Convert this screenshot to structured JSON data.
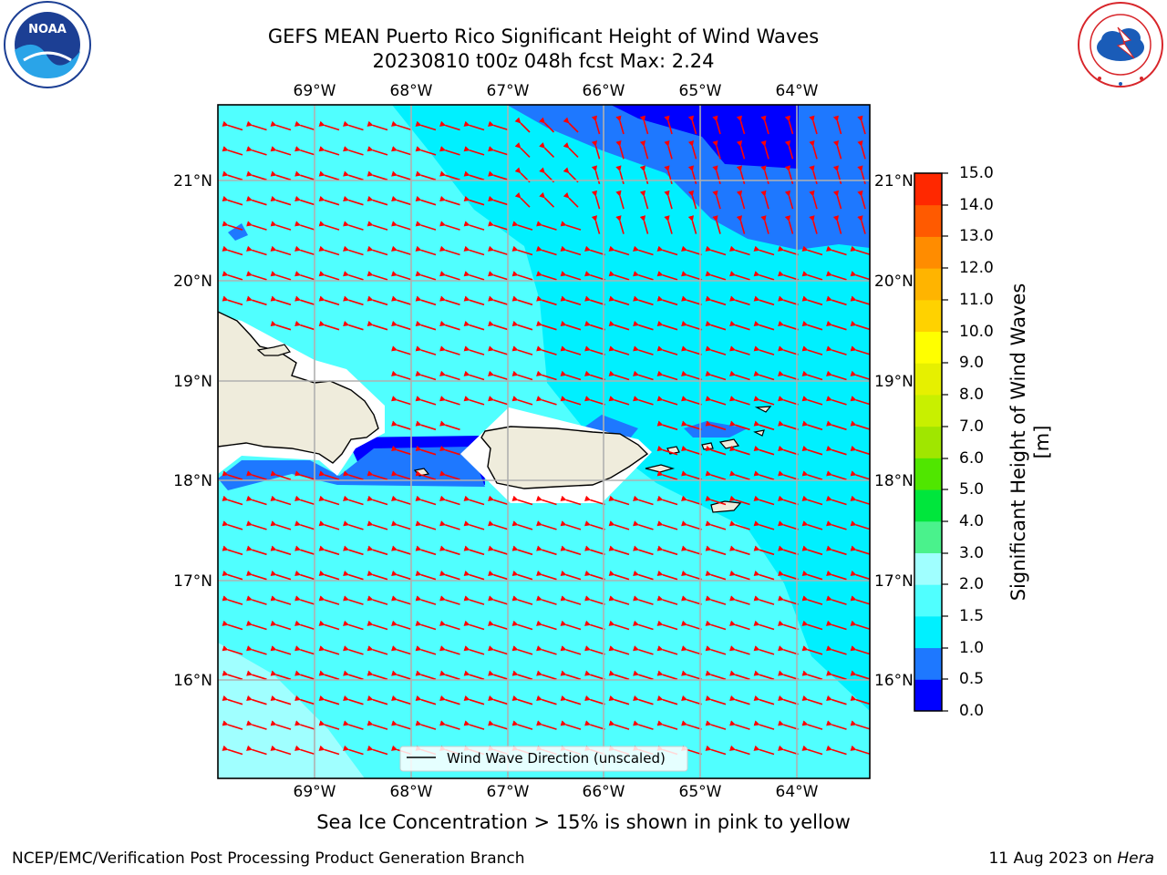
{
  "header": {
    "title_line1": "GEFS MEAN Puerto Rico Significant Height of Wind Waves",
    "title_line2": "20230810 t00z 048h fcst   Max: 2.24"
  },
  "logos": {
    "left": {
      "name": "noaa-logo",
      "text": "NOAA",
      "ring_text": "NATIONAL OCEANIC AND ATMOSPHERIC ADMINISTRATION · U.S. DEPARTMENT OF COMMERCE"
    },
    "right": {
      "name": "nws-logo",
      "ring_text": "NATIONAL WEATHER SERVICE"
    }
  },
  "map": {
    "lon_labels": [
      "69°W",
      "68°W",
      "67°W",
      "66°W",
      "65°W",
      "64°W"
    ],
    "lat_labels": [
      "21°N",
      "20°N",
      "19°N",
      "18°N",
      "17°N",
      "16°N"
    ],
    "legend": "Wind Wave Direction (unscaled)",
    "arrow_color": "#ff0000",
    "land_color": "#efecdc",
    "gridline_color": "#b0b0b0"
  },
  "colorbar": {
    "labels": [
      "15.0",
      "14.0",
      "13.0",
      "12.0",
      "11.0",
      "10.0",
      "9.0",
      "8.0",
      "7.0",
      "6.0",
      "5.0",
      "4.0",
      "3.0",
      "2.0",
      "1.5",
      "1.0",
      "0.5",
      "0.0"
    ],
    "colors_bottom_to_top": [
      "#0000ff",
      "#1e78ff",
      "#00f0ff",
      "#50ffff",
      "#a0ffff",
      "#4af28c",
      "#00e63c",
      "#50e600",
      "#a0e600",
      "#c8f000",
      "#e6f000",
      "#ffff00",
      "#ffd200",
      "#ffb400",
      "#ff8c00",
      "#ff5a00",
      "#ff2800",
      "#ff0000"
    ],
    "title": "Significant Height of Wind Waves [m]"
  },
  "caption": "Sea Ice Concentration > 15% is shown in pink to yellow",
  "footer": {
    "left": "NCEP/EMC/Verification Post Processing Product Generation Branch",
    "right_date": "11 Aug 2023 on",
    "right_host": "Hera"
  }
}
